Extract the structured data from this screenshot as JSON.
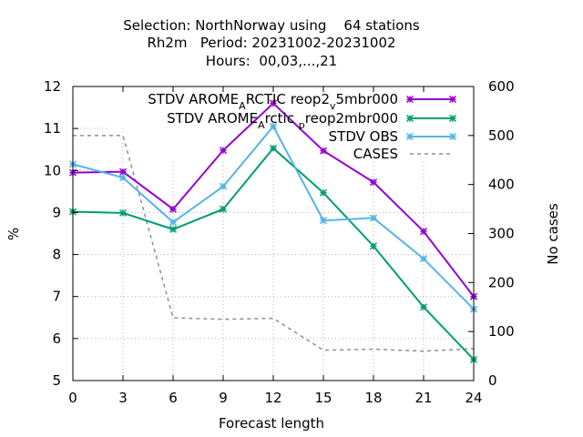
{
  "chart_data": {
    "type": "line",
    "title_lines": [
      "Selection: NorthNorway using    64 stations",
      "Rh2m   Period: 20231002-20231002",
      "Hours:  00,03,...,21"
    ],
    "xlabel": "Forecast length",
    "ylabel": "%",
    "y2label": "No cases",
    "x": [
      0,
      3,
      6,
      9,
      12,
      15,
      18,
      21,
      24
    ],
    "xlim": [
      0,
      24
    ],
    "ylim": [
      5,
      12
    ],
    "y2lim": [
      0,
      600
    ],
    "x_ticks": [
      "0",
      "3",
      "6",
      "9",
      "12",
      "15",
      "18",
      "21",
      "24"
    ],
    "y_ticks": [
      "5",
      "6",
      "7",
      "8",
      "9",
      "10",
      "11",
      "12"
    ],
    "y2_ticks": [
      "0",
      "100",
      "200",
      "300",
      "400",
      "500",
      "600"
    ],
    "grid": "partial",
    "legend_position": "top-right",
    "series": [
      {
        "name": "STDV AROME_ARCTIC_reop2_v5mbr000",
        "legend_parts": [
          {
            "t": "STDV AROME"
          },
          {
            "t": "A",
            "sub": true
          },
          {
            "t": "RCTIC"
          },
          {
            "t": " "
          },
          {
            "t": "reop2"
          },
          {
            "t": "v",
            "sub": true
          },
          {
            "t": "5mbr000"
          }
        ],
        "color": "#9400d3",
        "marker": "x",
        "values": [
          9.95,
          9.97,
          9.08,
          10.48,
          11.6,
          10.47,
          9.72,
          8.55,
          7.0
        ]
      },
      {
        "name": "STDV AROME_Arctic_preop2mbr000",
        "legend_parts": [
          {
            "t": "STDV AROME"
          },
          {
            "t": "A",
            "sub": true
          },
          {
            "t": "rctic"
          },
          {
            "t": " "
          },
          {
            "t": "p",
            "sub": true
          },
          {
            "t": "reop2mbr000"
          }
        ],
        "color": "#009e73",
        "marker": "x",
        "values": [
          9.02,
          8.99,
          8.6,
          9.08,
          10.53,
          9.47,
          8.2,
          6.75,
          5.5
        ]
      },
      {
        "name": "STDV OBS",
        "legend_parts": [
          {
            "t": "STDV OBS"
          }
        ],
        "color": "#56b4e9",
        "marker": "x",
        "values": [
          10.15,
          9.83,
          8.77,
          9.62,
          11.05,
          8.81,
          8.87,
          7.9,
          6.7
        ]
      },
      {
        "name": "CASES",
        "legend_parts": [
          {
            "t": "CASES"
          }
        ],
        "color": "#909090",
        "dashed": true,
        "axis": "y2",
        "values": [
          500,
          500,
          128,
          125,
          127,
          62,
          64,
          60,
          65
        ]
      }
    ]
  }
}
